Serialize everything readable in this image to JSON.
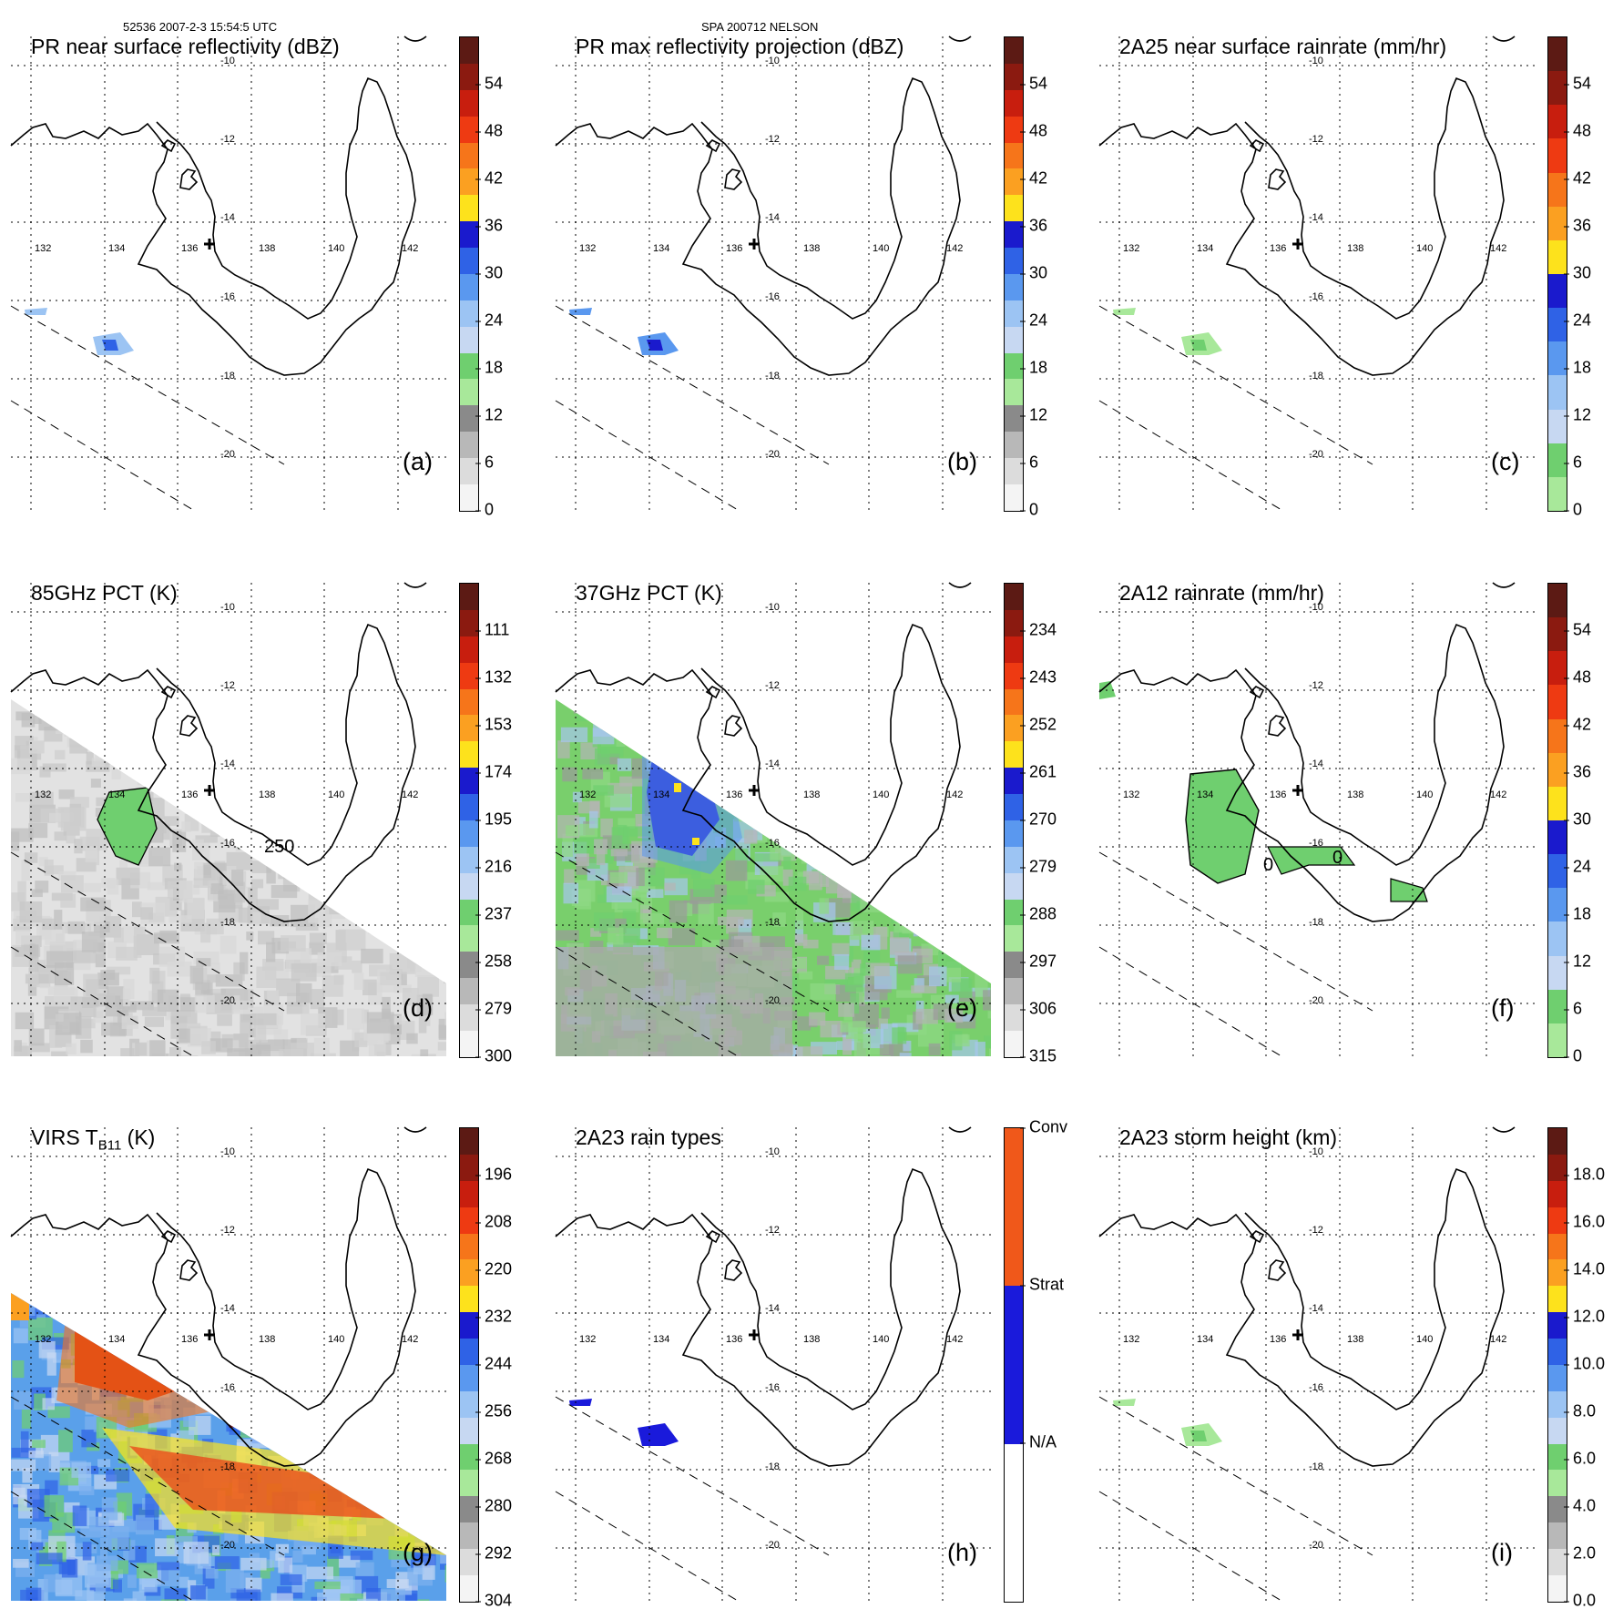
{
  "header": {
    "left": "52536 2007-2-3 15:54:5 UTC",
    "center": "SPA 200712 NELSON"
  },
  "lon_labels": [
    "132",
    "134",
    "136",
    "138",
    "140",
    "142"
  ],
  "lat_labels": [
    "-10",
    "-12",
    "-14",
    "-16",
    "-18",
    "-20"
  ],
  "panels": [
    {
      "id": "a",
      "title": "PR near surface reflectivity (dBZ)",
      "label": "(a)",
      "colors": [
        "#5c1a14",
        "#8b1a10",
        "#c81e0e",
        "#ee3a12",
        "#f6751a",
        "#fba021",
        "#fde21c",
        "#1a1acd",
        "#2f62e6",
        "#5a98ef",
        "#9cc4f3",
        "#c7d8f2",
        "#6fcf6f",
        "#a8e89a",
        "#8a8a8a",
        "#b8b8b8",
        "#dcdcdc",
        "#f4f4f4"
      ],
      "ticks": [
        "54",
        "48",
        "42",
        "36",
        "30",
        "24",
        "18",
        "12",
        "6",
        "0"
      ],
      "contour": []
    },
    {
      "id": "b",
      "title": "PR max reflectivity projection (dBZ)",
      "label": "(b)",
      "colors": [
        "#5c1a14",
        "#8b1a10",
        "#c81e0e",
        "#ee3a12",
        "#f6751a",
        "#fba021",
        "#fde21c",
        "#1a1acd",
        "#2f62e6",
        "#5a98ef",
        "#9cc4f3",
        "#c7d8f2",
        "#6fcf6f",
        "#a8e89a",
        "#8a8a8a",
        "#b8b8b8",
        "#dcdcdc",
        "#f4f4f4"
      ],
      "ticks": [
        "54",
        "48",
        "42",
        "36",
        "30",
        "24",
        "18",
        "12",
        "6",
        "0"
      ],
      "contour": []
    },
    {
      "id": "c",
      "title": "2A25 near surface rainrate (mm/hr)",
      "label": "(c)",
      "colors": [
        "#5c1a14",
        "#8b1a10",
        "#c81e0e",
        "#ee3a12",
        "#f6751a",
        "#fba021",
        "#fde21c",
        "#1a1acd",
        "#2f62e6",
        "#5a98ef",
        "#9cc4f3",
        "#c7d8f2",
        "#6fcf6f",
        "#a8e89a"
      ],
      "ticks": [
        "54",
        "48",
        "42",
        "36",
        "30",
        "24",
        "18",
        "12",
        "6",
        "0"
      ],
      "contour": []
    },
    {
      "id": "d",
      "title": "85GHz PCT (K)",
      "label": "(d)",
      "colors": [
        "#5c1a14",
        "#8b1a10",
        "#c81e0e",
        "#ee3a12",
        "#f6751a",
        "#fba021",
        "#fde21c",
        "#1a1acd",
        "#2f62e6",
        "#5a98ef",
        "#9cc4f3",
        "#c7d8f2",
        "#6fcf6f",
        "#a8e89a",
        "#8a8a8a",
        "#b8b8b8",
        "#dcdcdc",
        "#f4f4f4"
      ],
      "ticks": [
        "111",
        "132",
        "153",
        "174",
        "195",
        "216",
        "237",
        "258",
        "279",
        "300"
      ],
      "contour": [
        "250"
      ]
    },
    {
      "id": "e",
      "title": "37GHz PCT (K)",
      "label": "(e)",
      "colors": [
        "#5c1a14",
        "#8b1a10",
        "#c81e0e",
        "#ee3a12",
        "#f6751a",
        "#fba021",
        "#fde21c",
        "#1a1acd",
        "#2f62e6",
        "#5a98ef",
        "#9cc4f3",
        "#c7d8f2",
        "#6fcf6f",
        "#a8e89a",
        "#8a8a8a",
        "#b8b8b8",
        "#dcdcdc",
        "#f4f4f4"
      ],
      "ticks": [
        "234",
        "243",
        "252",
        "261",
        "270",
        "279",
        "288",
        "297",
        "306",
        "315"
      ],
      "contour": []
    },
    {
      "id": "f",
      "title": "2A12 rainrate (mm/hr)",
      "label": "(f)",
      "colors": [
        "#5c1a14",
        "#8b1a10",
        "#c81e0e",
        "#ee3a12",
        "#f6751a",
        "#fba021",
        "#fde21c",
        "#1a1acd",
        "#2f62e6",
        "#5a98ef",
        "#9cc4f3",
        "#c7d8f2",
        "#6fcf6f",
        "#a8e89a"
      ],
      "ticks": [
        "54",
        "48",
        "42",
        "36",
        "30",
        "24",
        "18",
        "12",
        "6",
        "0"
      ],
      "contour": [
        "0",
        "0"
      ]
    },
    {
      "id": "g",
      "title": "VIRS T_B11 (K)",
      "title_main": "VIRS T",
      "title_sub": "B11",
      "title_end": " (K)",
      "label": "(g)",
      "colors": [
        "#5c1a14",
        "#8b1a10",
        "#c81e0e",
        "#ee3a12",
        "#f6751a",
        "#fba021",
        "#fde21c",
        "#1a1acd",
        "#2f62e6",
        "#5a98ef",
        "#9cc4f3",
        "#c7d8f2",
        "#6fcf6f",
        "#a8e89a",
        "#8a8a8a",
        "#b8b8b8",
        "#dcdcdc",
        "#f4f4f4"
      ],
      "ticks": [
        "196",
        "208",
        "220",
        "232",
        "244",
        "256",
        "268",
        "280",
        "292",
        "304"
      ],
      "contour": []
    },
    {
      "id": "h",
      "title": "2A23 rain types",
      "label": "(h)",
      "colors": [
        "#f0581a",
        "#1a1adb",
        "#ffffff"
      ],
      "ticks": [
        "Conv",
        "Strat",
        "N/A"
      ],
      "contour": []
    },
    {
      "id": "i",
      "title": "2A23 storm height (km)",
      "label": "(i)",
      "colors": [
        "#5c1a14",
        "#8b1a10",
        "#c81e0e",
        "#ee3a12",
        "#f6751a",
        "#fba021",
        "#fde21c",
        "#1a1acd",
        "#2f62e6",
        "#5a98ef",
        "#9cc4f3",
        "#c7d8f2",
        "#6fcf6f",
        "#a8e89a",
        "#8a8a8a",
        "#b8b8b8",
        "#dcdcdc",
        "#f4f4f4"
      ],
      "ticks": [
        "18.0",
        "16.0",
        "14.0",
        "12.0",
        "10.0",
        "8.0",
        "6.0",
        "4.0",
        "2.0",
        "0.0"
      ],
      "contour": []
    }
  ]
}
